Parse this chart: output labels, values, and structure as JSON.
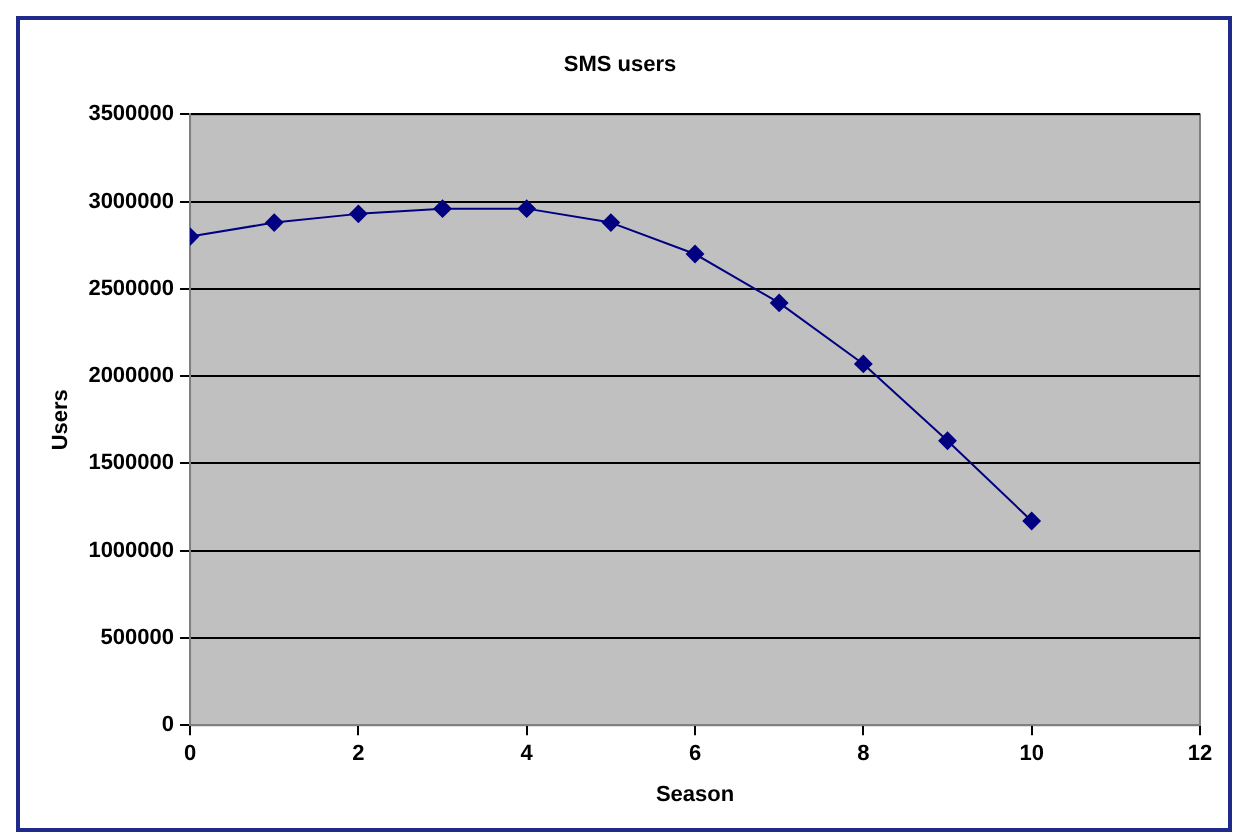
{
  "chart_data": {
    "type": "line",
    "title": "SMS users",
    "xlabel": "Season",
    "ylabel": "Users",
    "x": [
      0,
      1,
      2,
      3,
      4,
      5,
      6,
      7,
      8,
      9,
      10
    ],
    "series": [
      {
        "color": "#000080",
        "values": [
          2800000,
          2880000,
          2930000,
          2960000,
          2960000,
          2880000,
          2700000,
          2420000,
          2070000,
          1630000,
          1170000
        ]
      }
    ],
    "xlim": [
      0,
      12
    ],
    "xticks": [
      0,
      2,
      4,
      6,
      8,
      10,
      12
    ],
    "ylim": [
      0,
      3500000
    ],
    "yticks": [
      0,
      500000,
      1000000,
      1500000,
      2000000,
      2500000,
      3000000,
      3500000
    ],
    "grid": "y",
    "legend": false,
    "marker": "diamond",
    "line_style": "solid"
  }
}
